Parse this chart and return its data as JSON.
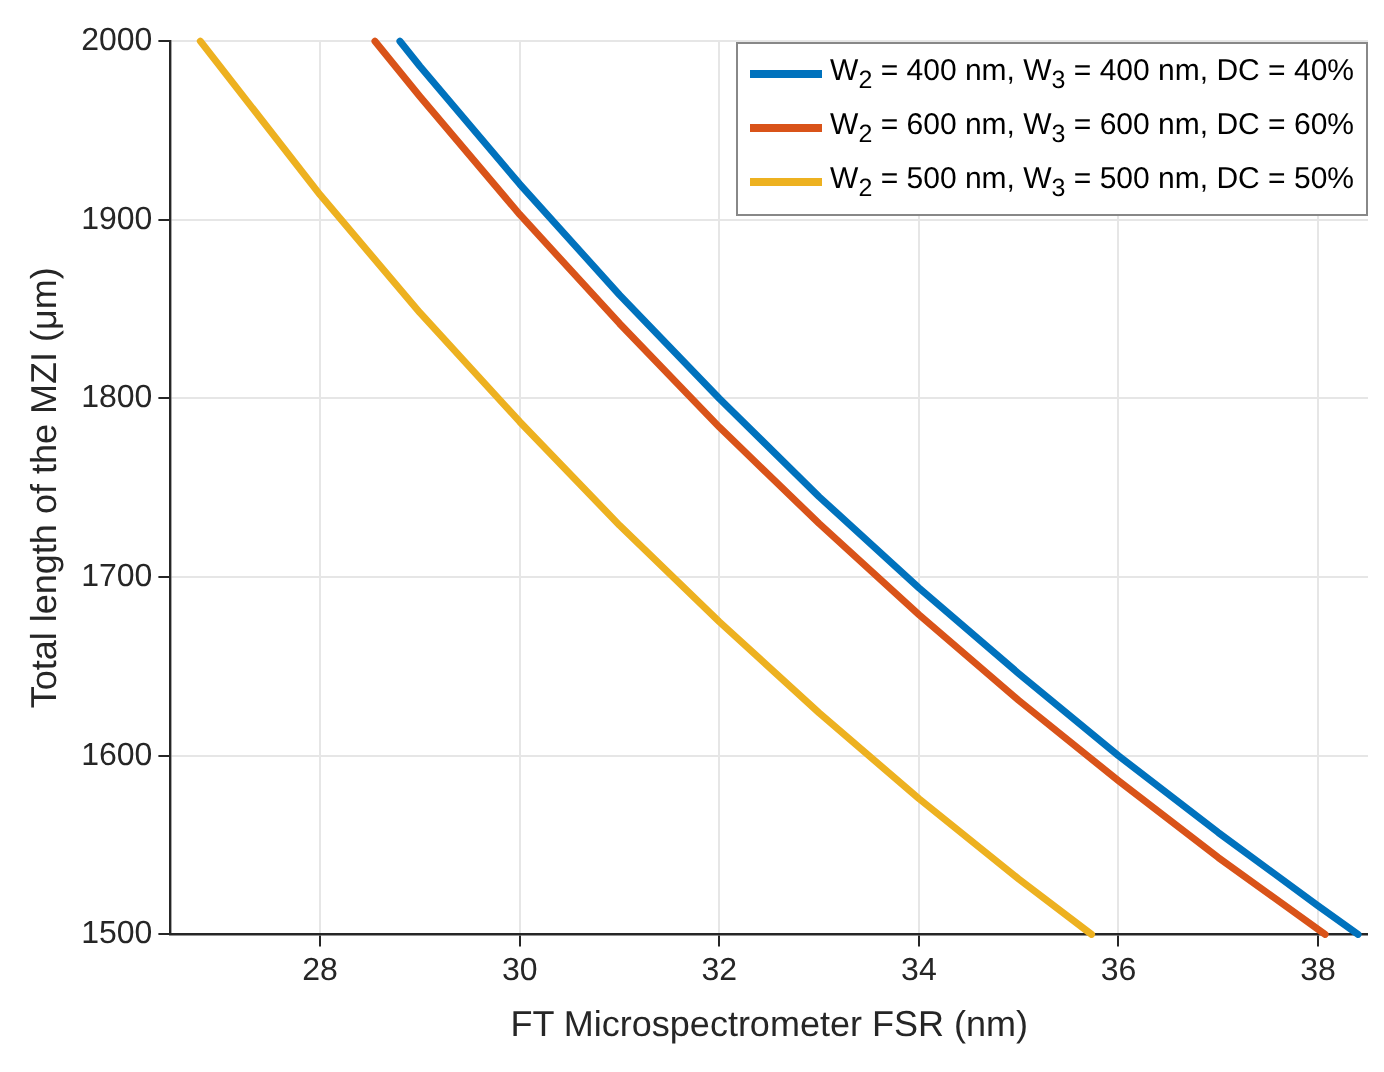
{
  "chart_data": {
    "type": "line",
    "xlabel": "FT Microspectrometer FSR (nm)",
    "ylabel": "Total length of the MZI (μm)",
    "xlim": [
      26.5,
      38.5
    ],
    "xticks": [
      28,
      30,
      32,
      34,
      36,
      38
    ],
    "ylim": [
      1500,
      2000
    ],
    "yticks": [
      1500,
      1600,
      1700,
      1800,
      1900,
      2000
    ],
    "grid": true,
    "legend": "top right",
    "marker": "none",
    "line_style": "solid",
    "series": [
      {
        "name": "W$_{2}$ = 400 nm, W$_{3}$ = 400 nm, DC = 40%",
        "color": "#0072bd",
        "x": [
          28.8,
          29,
          30,
          31,
          32,
          33,
          34,
          35,
          36,
          37,
          38,
          38.4
        ],
        "values": [
          2000,
          1986,
          1920,
          1858,
          1800,
          1745,
          1694,
          1646,
          1600,
          1557,
          1516,
          1500
        ]
      },
      {
        "name": "W$_{2}$ = 600 nm, W$_{3}$ = 600 nm, DC = 60%",
        "color": "#d95319",
        "x": [
          28.55,
          29,
          30,
          31,
          32,
          33,
          34,
          35,
          36,
          37,
          38.07
        ],
        "values": [
          2000,
          1969,
          1903,
          1842,
          1784,
          1730,
          1679,
          1631,
          1586,
          1543,
          1500
        ]
      },
      {
        "name": "W$_{2}$ = 500 nm, W$_{3}$ = 500 nm, DC = 50%",
        "color": "#edb120",
        "x": [
          26.8,
          28,
          29,
          30,
          31,
          32,
          33,
          34,
          35,
          35.73
        ],
        "values": [
          2000,
          1914,
          1848,
          1787,
          1729,
          1675,
          1624,
          1576,
          1531,
          1500
        ]
      }
    ]
  }
}
